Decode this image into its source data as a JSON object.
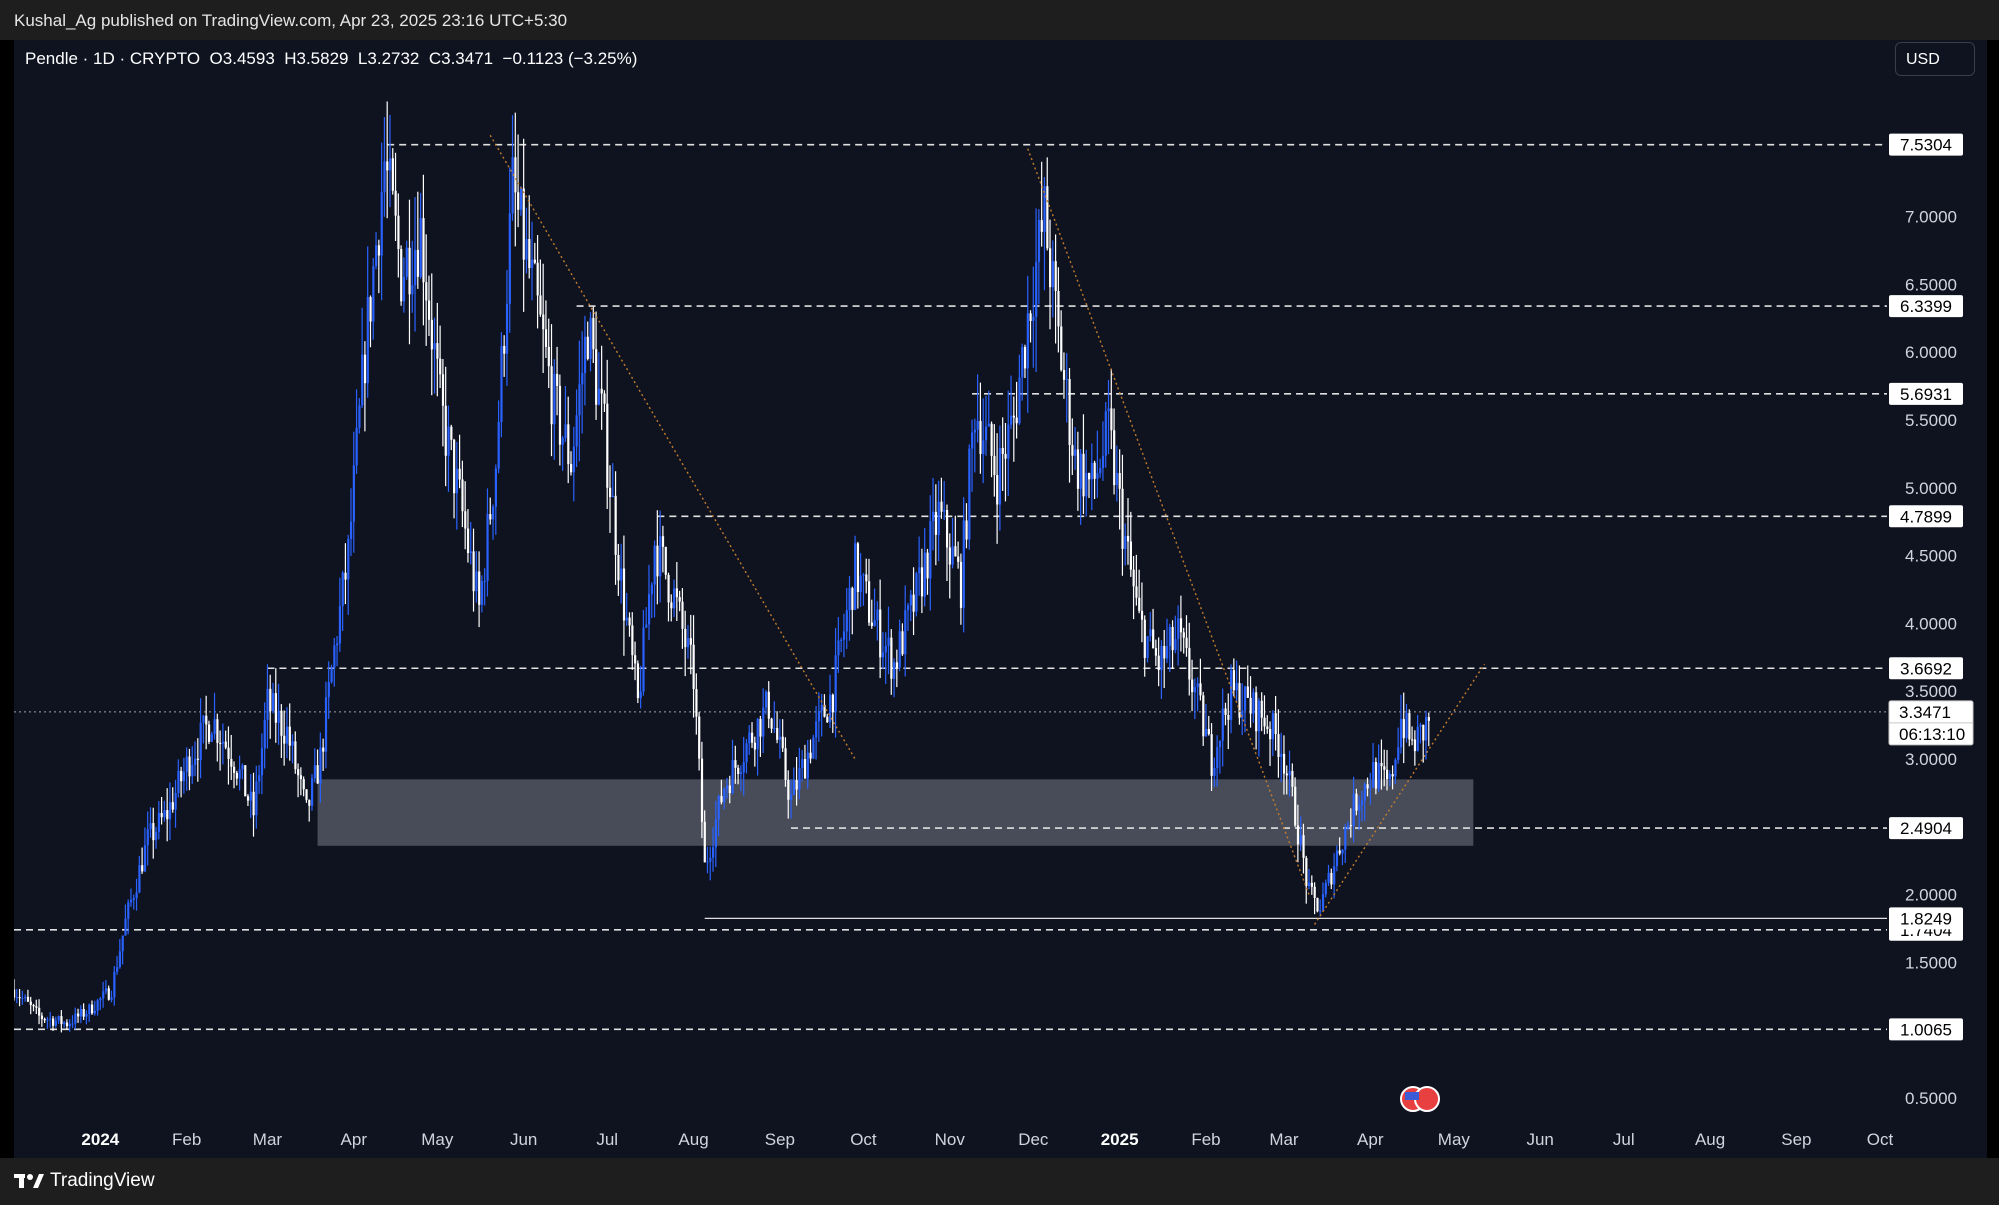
{
  "publisher": "Kushal_Ag published on TradingView.com, Apr 23, 2025 23:16 UTC+5:30",
  "legend": "Pendle · 1D · CRYPTO  O3.4593  H3.5829  L3.2732  C3.3471  −0.1123 (−3.25%)",
  "currency": "USD",
  "brand": "TradingView",
  "chart_data": {
    "type": "candlestick",
    "symbol": "Pendle",
    "interval": "1D",
    "exchange": "CRYPTO",
    "ohlc": {
      "open": 3.4593,
      "high": 3.5829,
      "low": 3.2732,
      "close": 3.3471,
      "change": -0.1123,
      "change_pct": -3.25
    },
    "ylim": [
      0.05,
      8.2
    ],
    "y_ticks": [
      "0.5000",
      "1.5000",
      "2.0000",
      "3.0000",
      "3.5000",
      "4.0000",
      "4.5000",
      "5.0000",
      "5.5000",
      "6.0000",
      "6.5000",
      "7.0000"
    ],
    "x_ticks": [
      {
        "label": "2024",
        "bold": true,
        "date": "2024-01-01"
      },
      {
        "label": "Feb",
        "date": "2024-02-01"
      },
      {
        "label": "Mar",
        "date": "2024-03-01"
      },
      {
        "label": "Apr",
        "date": "2024-04-01"
      },
      {
        "label": "May",
        "date": "2024-05-01"
      },
      {
        "label": "Jun",
        "date": "2024-06-01"
      },
      {
        "label": "Jul",
        "date": "2024-07-01"
      },
      {
        "label": "Aug",
        "date": "2024-08-01"
      },
      {
        "label": "Sep",
        "date": "2024-09-01"
      },
      {
        "label": "Oct",
        "date": "2024-10-01"
      },
      {
        "label": "Nov",
        "date": "2024-11-01"
      },
      {
        "label": "Dec",
        "date": "2024-12-01"
      },
      {
        "label": "2025",
        "bold": true,
        "date": "2025-01-01"
      },
      {
        "label": "Feb",
        "date": "2025-02-01"
      },
      {
        "label": "Mar",
        "date": "2025-03-01"
      },
      {
        "label": "Apr",
        "date": "2025-04-01"
      },
      {
        "label": "May",
        "date": "2025-05-01"
      },
      {
        "label": "Jun",
        "date": "2025-06-01"
      },
      {
        "label": "Jul",
        "date": "2025-07-01"
      },
      {
        "label": "Aug",
        "date": "2025-08-01"
      },
      {
        "label": "Sep",
        "date": "2025-09-01"
      },
      {
        "label": "Oct",
        "date": "2025-10-01"
      }
    ],
    "horizontal_levels": [
      {
        "value": 7.5304,
        "label": "7.5304",
        "from": "2024-04-13"
      },
      {
        "value": 6.3399,
        "label": "6.3399",
        "from": "2024-06-20"
      },
      {
        "value": 5.6931,
        "label": "5.6931",
        "from": "2024-11-09"
      },
      {
        "value": 4.7899,
        "label": "4.7899",
        "from": "2024-07-19"
      },
      {
        "value": 3.6692,
        "label": "3.6692",
        "from": "2024-03-01"
      },
      {
        "value": 2.4904,
        "label": "2.4904",
        "from": "2024-09-05"
      },
      {
        "value": 1.7404,
        "label": "1.7404",
        "from": "2023-12-01"
      },
      {
        "value": 1.0065,
        "label": "1.0065",
        "from": "2023-12-01"
      }
    ],
    "support_line": {
      "value": 1.8249,
      "label": "1.8249",
      "from": "2024-08-05"
    },
    "last_price": {
      "value": 3.3471,
      "label": "3.3471",
      "countdown": "06:13:10"
    },
    "zone": {
      "from": "2024-03-19",
      "to": "2025-05-08",
      "low": 2.36,
      "high": 2.85
    },
    "trendlines": [
      {
        "from": [
          "2024-05-20",
          7.6
        ],
        "to": [
          "2024-09-28",
          3.0
        ]
      },
      {
        "from": [
          "2024-11-29",
          7.5
        ],
        "to": [
          "2025-03-10",
          2.0
        ]
      },
      {
        "from": [
          "2025-03-12",
          1.78
        ],
        "to": [
          "2025-05-12",
          3.7
        ]
      }
    ],
    "price_path": [
      [
        "2023-12-01",
        1.3
      ],
      [
        "2023-12-10",
        1.1
      ],
      [
        "2023-12-20",
        1.05
      ],
      [
        "2023-12-28",
        1.15
      ],
      [
        "2024-01-05",
        1.3
      ],
      [
        "2024-01-10",
        1.8
      ],
      [
        "2024-01-18",
        2.4
      ],
      [
        "2024-01-25",
        2.6
      ],
      [
        "2024-02-02",
        3.0
      ],
      [
        "2024-02-10",
        3.3
      ],
      [
        "2024-02-18",
        3.0
      ],
      [
        "2024-02-25",
        2.6
      ],
      [
        "2024-03-01",
        3.4
      ],
      [
        "2024-03-08",
        3.2
      ],
      [
        "2024-03-15",
        2.6
      ],
      [
        "2024-03-20",
        3.0
      ],
      [
        "2024-03-25",
        3.8
      ],
      [
        "2024-03-30",
        4.5
      ],
      [
        "2024-04-05",
        6.0
      ],
      [
        "2024-04-12",
        7.4
      ],
      [
        "2024-04-18",
        6.6
      ],
      [
        "2024-04-25",
        6.9
      ],
      [
        "2024-05-02",
        5.6
      ],
      [
        "2024-05-10",
        4.8
      ],
      [
        "2024-05-16",
        4.1
      ],
      [
        "2024-05-22",
        5.2
      ],
      [
        "2024-05-28",
        7.2
      ],
      [
        "2024-06-05",
        6.4
      ],
      [
        "2024-06-12",
        5.6
      ],
      [
        "2024-06-18",
        5.2
      ],
      [
        "2024-06-24",
        6.2
      ],
      [
        "2024-06-30",
        5.4
      ],
      [
        "2024-07-06",
        4.3
      ],
      [
        "2024-07-12",
        3.4
      ],
      [
        "2024-07-18",
        4.6
      ],
      [
        "2024-07-25",
        4.2
      ],
      [
        "2024-08-01",
        3.6
      ],
      [
        "2024-08-05",
        2.2
      ],
      [
        "2024-08-12",
        2.8
      ],
      [
        "2024-08-20",
        3.1
      ],
      [
        "2024-08-28",
        3.4
      ],
      [
        "2024-09-05",
        2.7
      ],
      [
        "2024-09-12",
        3.1
      ],
      [
        "2024-09-20",
        3.5
      ],
      [
        "2024-09-28",
        4.4
      ],
      [
        "2024-10-05",
        4.0
      ],
      [
        "2024-10-12",
        3.7
      ],
      [
        "2024-10-20",
        4.2
      ],
      [
        "2024-10-28",
        4.8
      ],
      [
        "2024-11-05",
        4.3
      ],
      [
        "2024-11-10",
        5.6
      ],
      [
        "2024-11-18",
        5.1
      ],
      [
        "2024-11-24",
        5.5
      ],
      [
        "2024-11-30",
        6.4
      ],
      [
        "2024-12-05",
        7.0
      ],
      [
        "2024-12-10",
        6.1
      ],
      [
        "2024-12-16",
        5.2
      ],
      [
        "2024-12-22",
        5.0
      ],
      [
        "2024-12-28",
        5.4
      ],
      [
        "2025-01-03",
        4.6
      ],
      [
        "2025-01-08",
        4.0
      ],
      [
        "2025-01-15",
        3.7
      ],
      [
        "2025-01-22",
        3.9
      ],
      [
        "2025-01-28",
        3.5
      ],
      [
        "2025-02-03",
        3.0
      ],
      [
        "2025-02-10",
        3.5
      ],
      [
        "2025-02-16",
        3.4
      ],
      [
        "2025-02-22",
        3.3
      ],
      [
        "2025-02-28",
        3.1
      ],
      [
        "2025-03-05",
        2.6
      ],
      [
        "2025-03-10",
        2.0
      ],
      [
        "2025-03-14",
        1.9
      ],
      [
        "2025-03-20",
        2.3
      ],
      [
        "2025-03-27",
        2.7
      ],
      [
        "2025-04-02",
        2.9
      ],
      [
        "2025-04-08",
        2.8
      ],
      [
        "2025-04-12",
        3.3
      ],
      [
        "2025-04-16",
        3.1
      ],
      [
        "2025-04-20",
        3.2
      ],
      [
        "2025-04-23",
        3.3471
      ]
    ]
  },
  "colors": {
    "background": "#0f1320",
    "frame": "#1e1e1e",
    "up": "#2962ff",
    "down": "#ffffff",
    "trend": "#c27c2c",
    "zone": "#787b86"
  }
}
